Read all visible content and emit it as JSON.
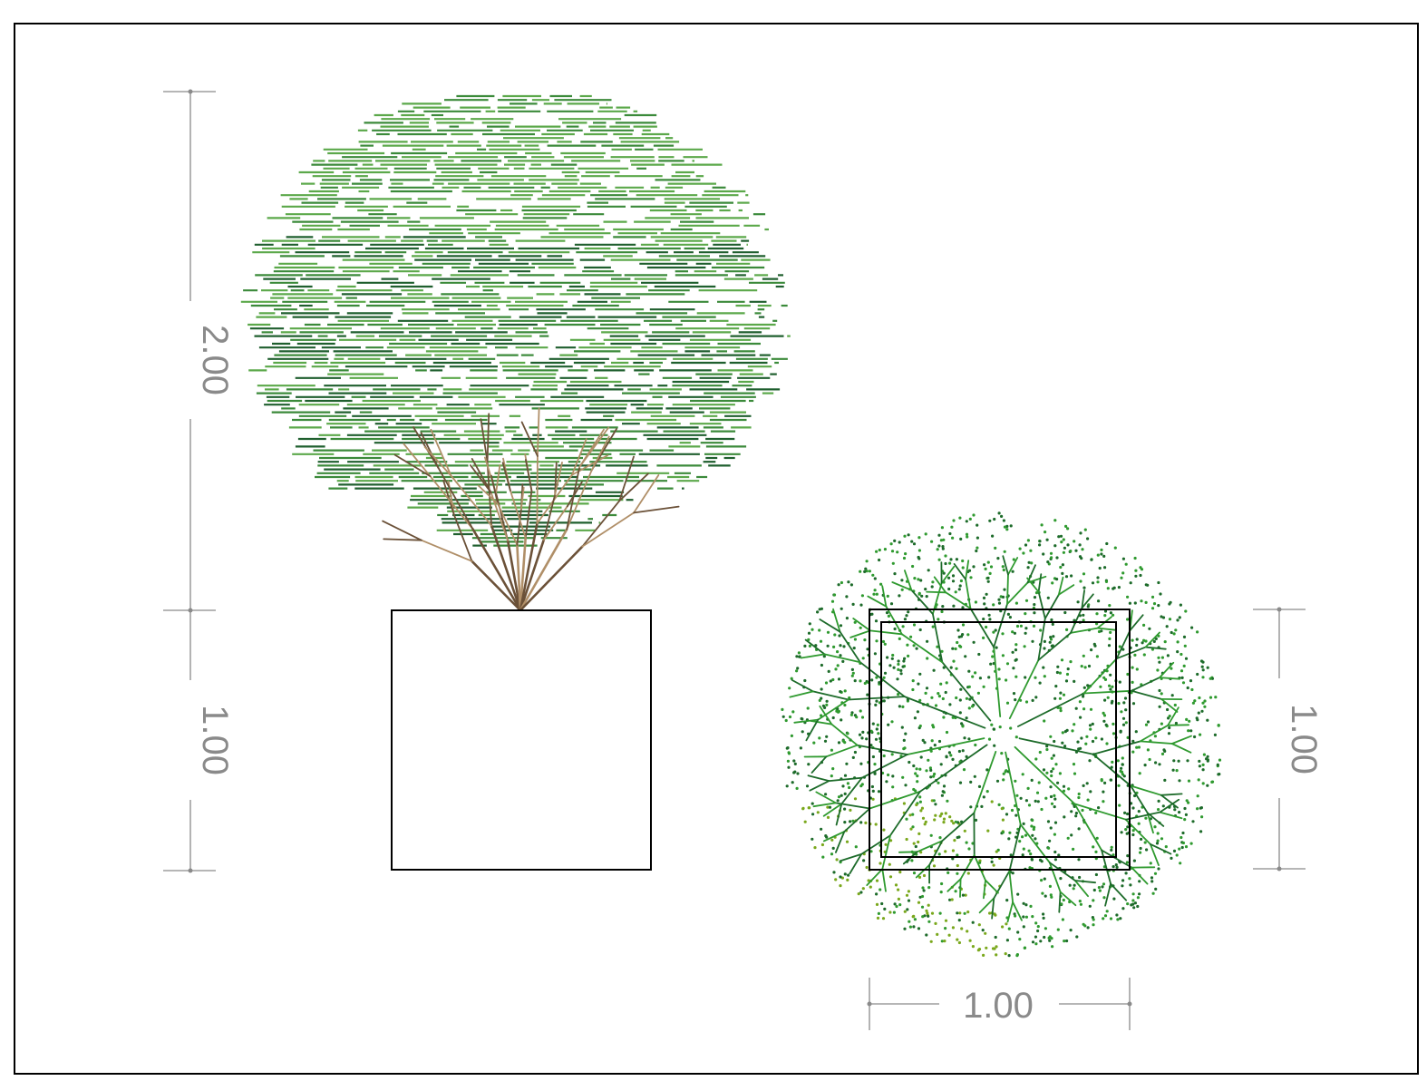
{
  "dimensions": {
    "elevation_tree_height": "2.00",
    "elevation_planter_height": "1.00",
    "plan_planter_depth": "1.00",
    "plan_planter_width": "1.00"
  },
  "colors": {
    "foliage_light": "#5ba84a",
    "foliage_mid": "#3b8a3a",
    "foliage_dark": "#1f5f2e",
    "branch_light": "#b08f68",
    "branch_dark": "#6b5138",
    "plan_green": "#2f9a2f",
    "plan_dark": "#1d6b2a",
    "plan_yellow": "#7aa81c",
    "dimension": "#8a8a8a"
  }
}
